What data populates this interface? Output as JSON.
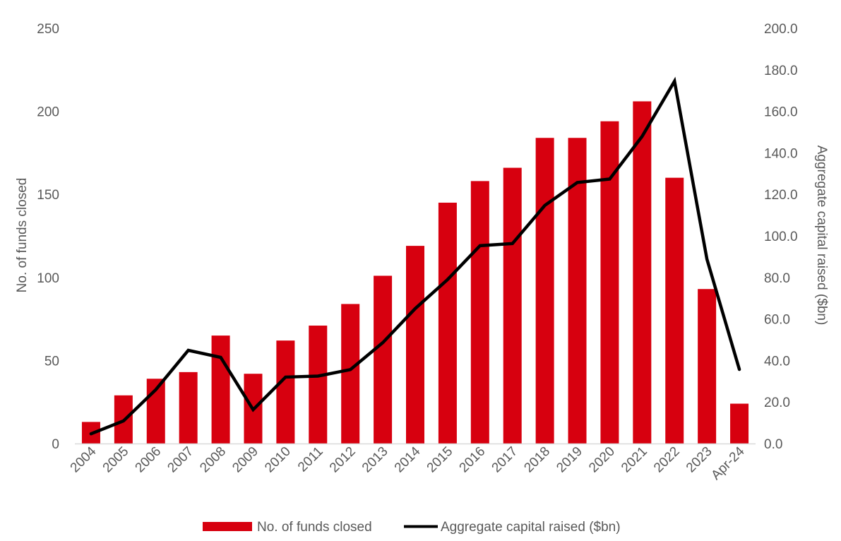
{
  "chart_data": {
    "type": "bar+line",
    "categories": [
      "2004",
      "2005",
      "2006",
      "2007",
      "2008",
      "2009",
      "2010",
      "2011",
      "2012",
      "2013",
      "2014",
      "2015",
      "2016",
      "2017",
      "2018",
      "2019",
      "2020",
      "2021",
      "2022",
      "2023",
      "Apr-24"
    ],
    "series": [
      {
        "name": "No. of funds closed",
        "type": "bar",
        "axis": "left",
        "color": "#D7000F",
        "values": [
          13,
          29,
          39,
          43,
          65,
          42,
          62,
          71,
          84,
          101,
          119,
          145,
          158,
          166,
          184,
          184,
          194,
          206,
          160,
          93,
          24
        ]
      },
      {
        "name": "Aggregate capital raised ($bn)",
        "type": "line",
        "axis": "right",
        "color": "#000000",
        "values": [
          4.7,
          10.9,
          26.0,
          44.9,
          41.5,
          16.3,
          32.0,
          32.5,
          35.6,
          48.6,
          65.0,
          79.0,
          95.3,
          96.3,
          114.7,
          125.7,
          127.4,
          147.9,
          174.5,
          88.8,
          35.7
        ]
      }
    ],
    "ylabel": "No. of funds closed",
    "ylabel_right": "Aggregate capital raised ($bn)",
    "ylim": [
      0,
      250
    ],
    "yticks": [
      "0",
      "50",
      "100",
      "150",
      "200",
      "250"
    ],
    "ylim_right": [
      0,
      200
    ],
    "yticks_right": [
      "0.0",
      "20.0",
      "40.0",
      "60.0",
      "80.0",
      "100.0",
      "120.0",
      "140.0",
      "160.0",
      "180.0",
      "200.0"
    ],
    "grid": false,
    "legend_position": "bottom"
  }
}
